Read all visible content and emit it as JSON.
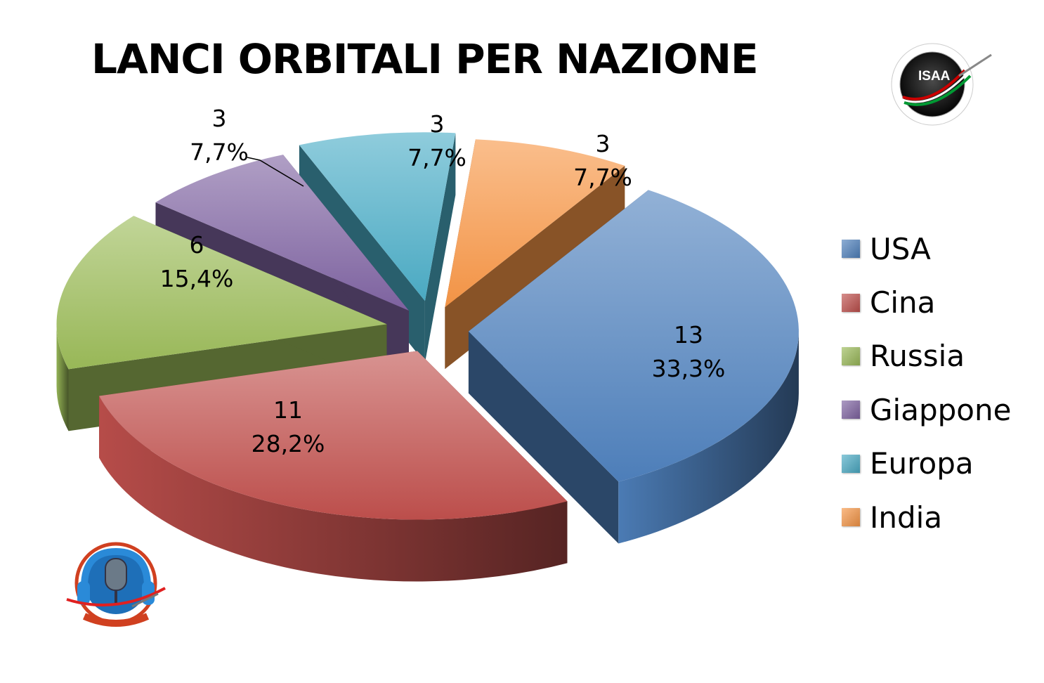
{
  "chart_data": {
    "type": "pie",
    "style": "3d-exploded",
    "title": "LANCI ORBITALI PER NAZIONE",
    "slices": [
      {
        "label": "USA",
        "value": 13,
        "percent": "33,3%",
        "color": "#4F81BD"
      },
      {
        "label": "Cina",
        "value": 11,
        "percent": "28,2%",
        "color": "#C0504D"
      },
      {
        "label": "Russia",
        "value": 6,
        "percent": "15,4%",
        "color": "#9BBB59"
      },
      {
        "label": "Giappone",
        "value": 3,
        "percent": "7,7%",
        "color": "#8064A2"
      },
      {
        "label": "Europa",
        "value": 3,
        "percent": "7,7%",
        "color": "#4BACC6"
      },
      {
        "label": "India",
        "value": 3,
        "percent": "7,7%",
        "color": "#F79646"
      }
    ],
    "legend_position": "right"
  },
  "logos": {
    "top_right": {
      "icon": "isaa-logo",
      "text": "ISAA"
    },
    "bottom_left": {
      "icon": "astronauticast-logo"
    }
  }
}
